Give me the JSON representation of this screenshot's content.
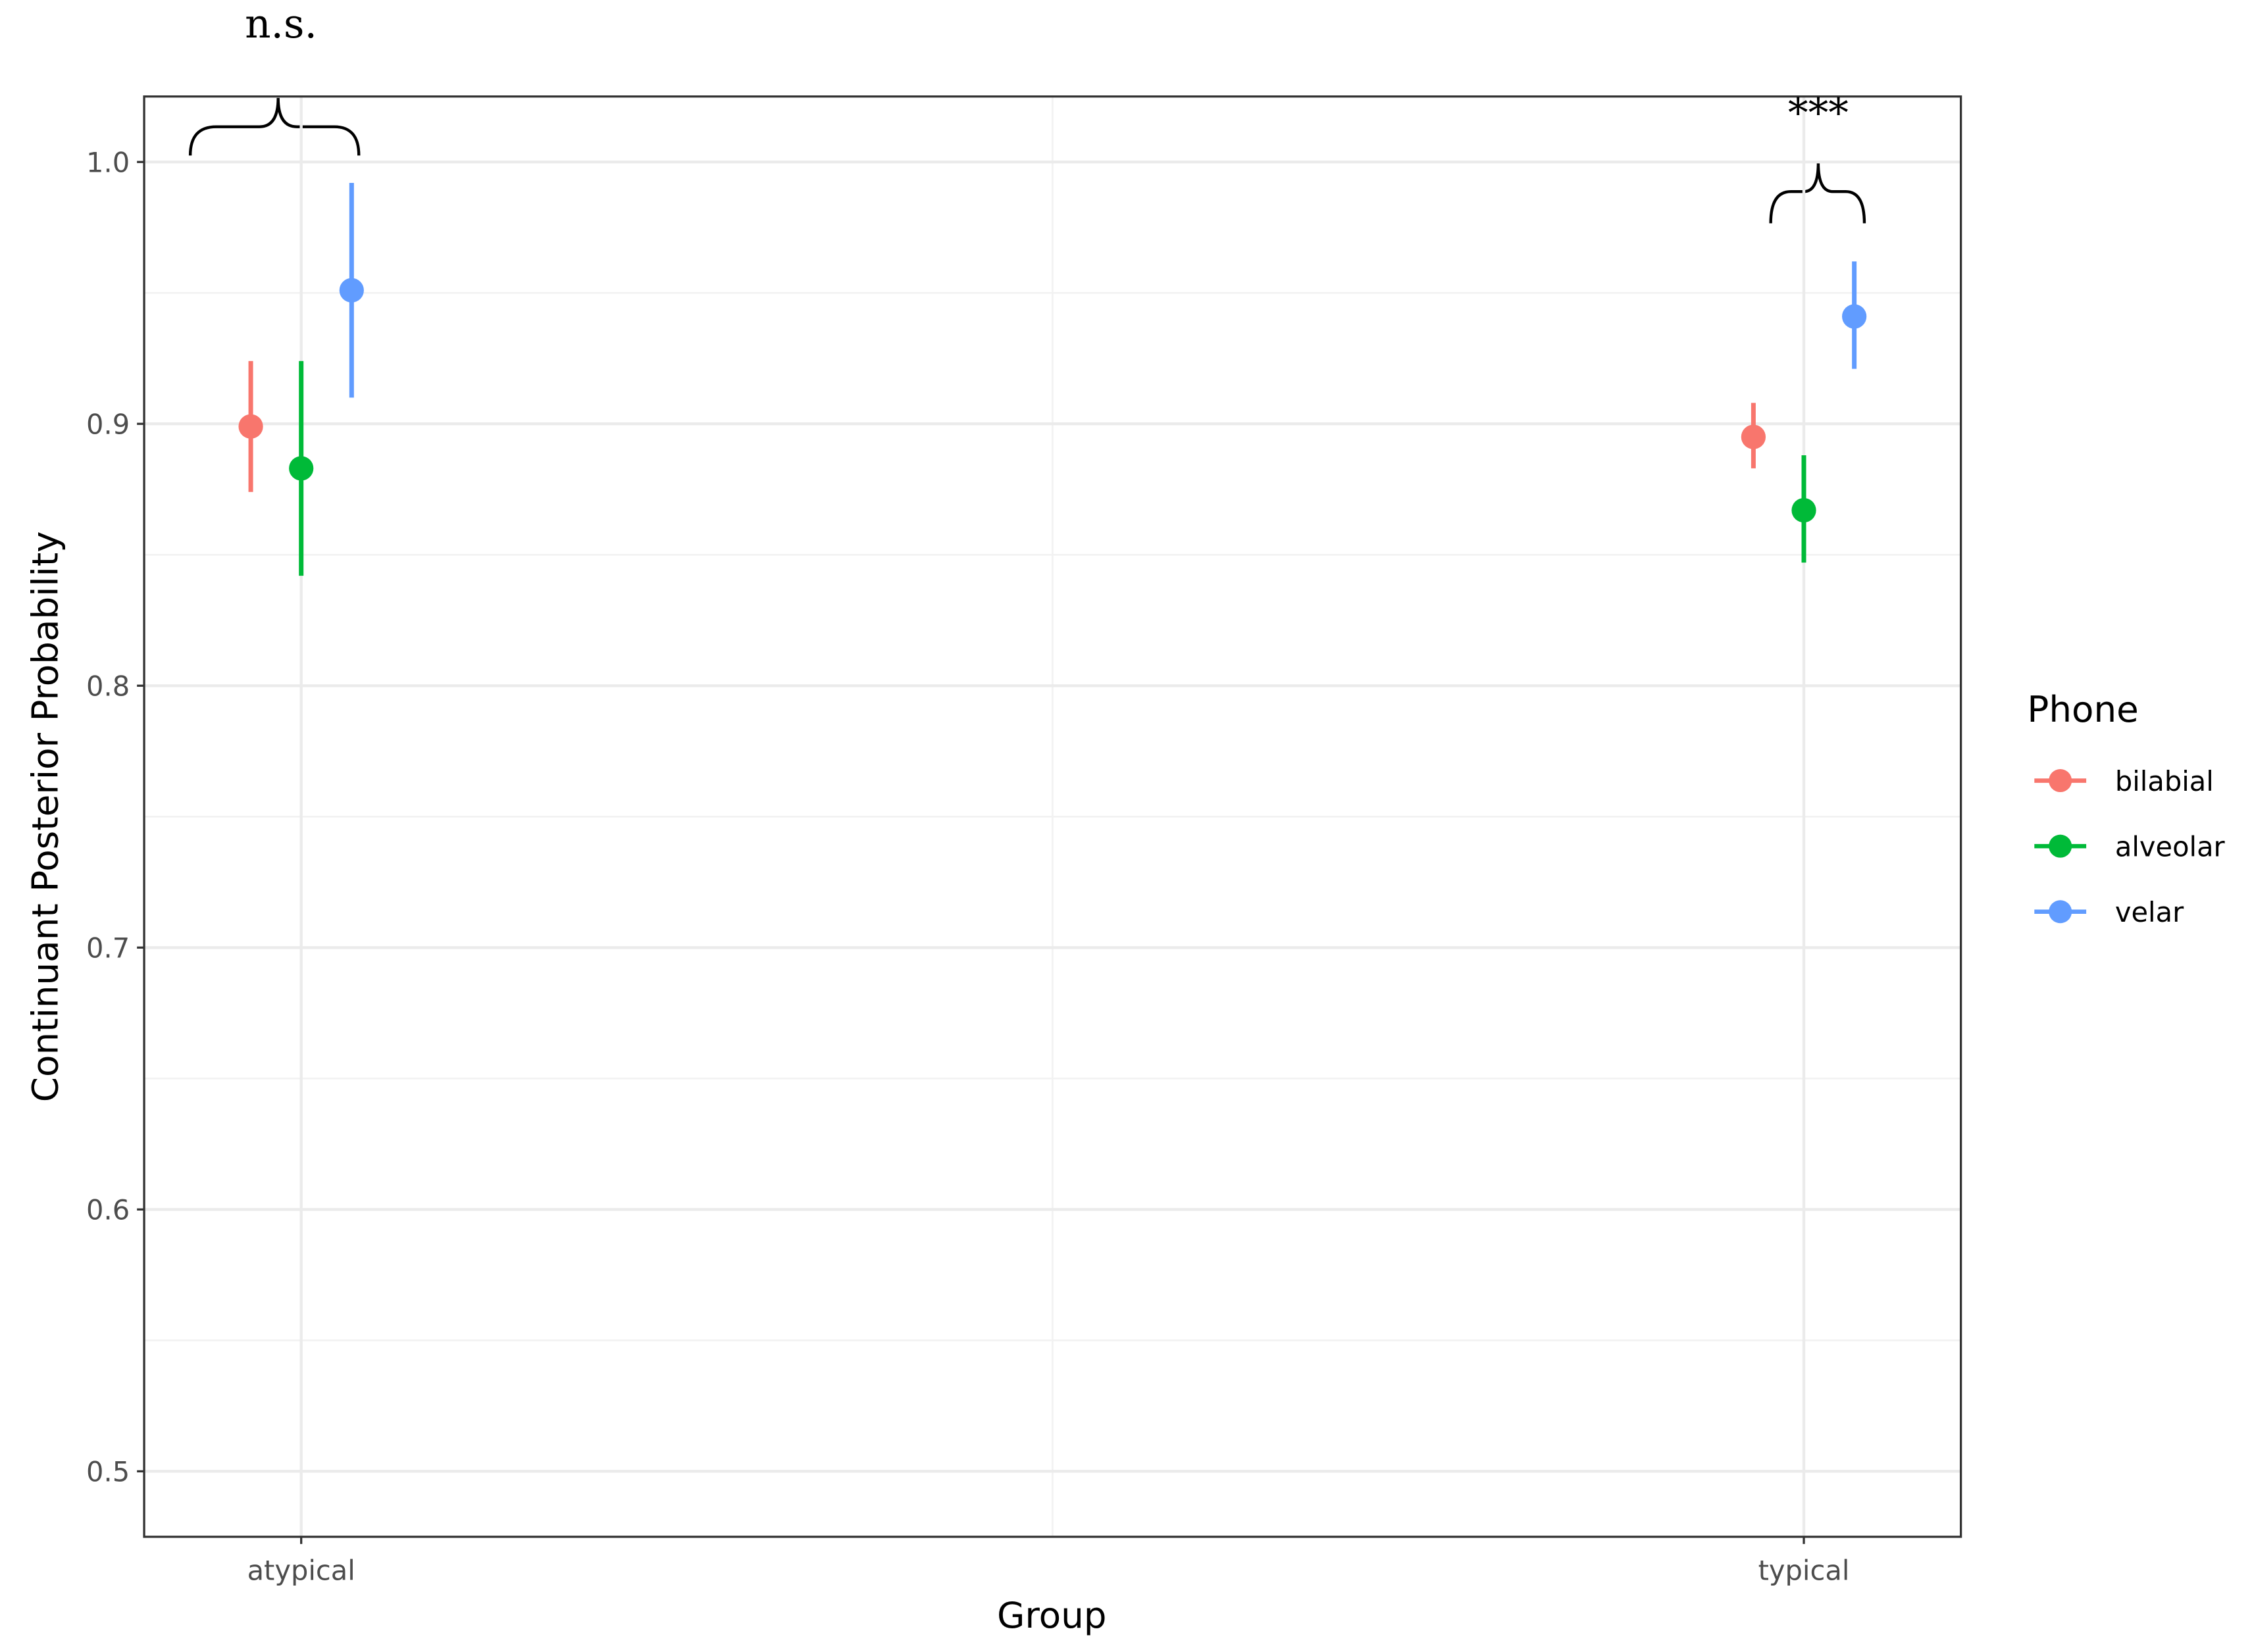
{
  "chart_data": {
    "type": "pointrange",
    "x_label": "Group",
    "y_label": "Continuant Posterior Probability",
    "categories": [
      "atypical",
      "typical"
    ],
    "series": [
      {
        "name": "bilabial",
        "color": "#f8766d",
        "values": [
          0.899,
          0.895
        ],
        "lower": [
          0.874,
          0.883
        ],
        "upper": [
          0.924,
          0.908
        ]
      },
      {
        "name": "alveolar",
        "color": "#00ba38",
        "values": [
          0.883,
          0.867
        ],
        "lower": [
          0.842,
          0.847
        ],
        "upper": [
          0.924,
          0.888
        ]
      },
      {
        "name": "velar",
        "color": "#619cff",
        "values": [
          0.951,
          0.941
        ],
        "lower": [
          0.91,
          0.921
        ],
        "upper": [
          0.992,
          0.962
        ]
      }
    ],
    "ylim": [
      0.475,
      1.025
    ],
    "yticks": [
      0.5,
      0.6,
      0.7,
      0.8,
      0.9,
      {
        "value": 1,
        "label": "1.0"
      }
    ],
    "y_minor_grid": [
      0.55,
      0.65,
      0.75,
      0.85,
      0.95
    ],
    "legend_title": "Phone",
    "legend": "right",
    "grid": true,
    "annotations": [
      {
        "text": "n.s.",
        "category": 0
      },
      {
        "text": "***",
        "category": 1
      }
    ]
  }
}
